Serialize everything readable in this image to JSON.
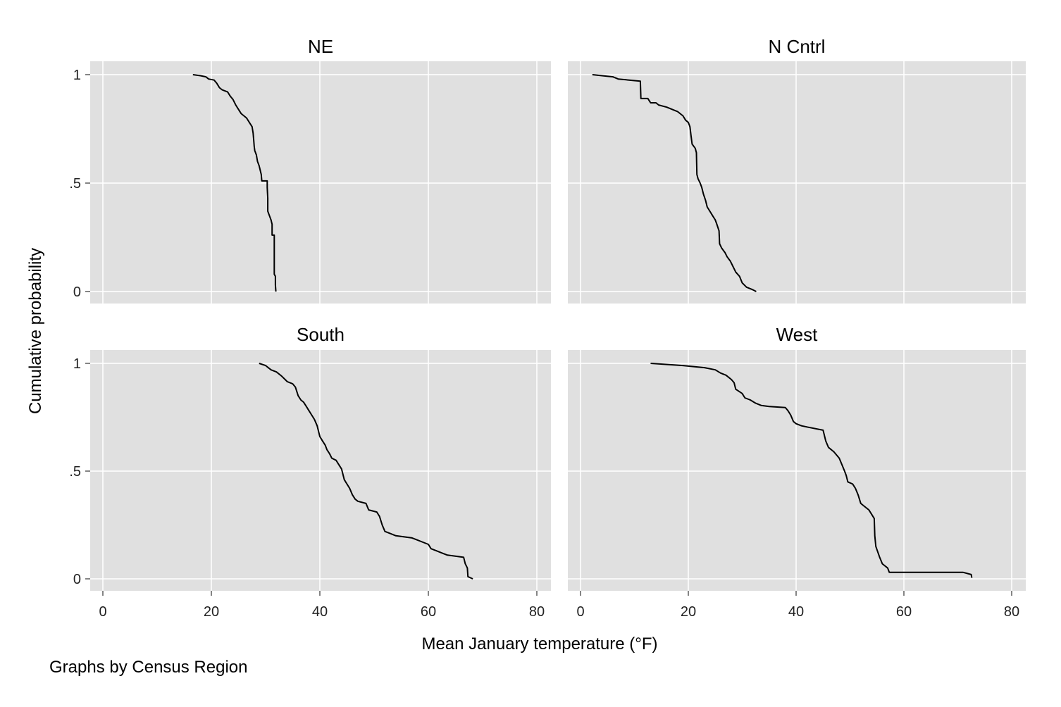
{
  "figure": {
    "xlabel": "Mean January temperature (°F)",
    "ylabel": "Cumulative probability",
    "note": "Graphs by Census Region",
    "background_color": "#ffffff",
    "plot_bg_color": "#e0e0e0",
    "grid_color": "#ffffff",
    "line_color": "#000000"
  },
  "chart_data": [
    {
      "type": "line",
      "title": "NE",
      "xlim": [
        0,
        80
      ],
      "ylim": [
        0,
        1
      ],
      "xticks": [
        "0",
        "20",
        "40",
        "60",
        "80"
      ],
      "yticks": [
        "0",
        ".5",
        "1"
      ],
      "series": [
        {
          "points": [
            [
              16.6,
              1.0
            ],
            [
              18.0,
              0.995
            ],
            [
              19.0,
              0.99
            ],
            [
              19.5,
              0.98
            ],
            [
              20.5,
              0.975
            ],
            [
              21.0,
              0.96
            ],
            [
              21.5,
              0.94
            ],
            [
              22.0,
              0.93
            ],
            [
              23.0,
              0.92
            ],
            [
              23.5,
              0.9
            ],
            [
              24.0,
              0.885
            ],
            [
              24.5,
              0.86
            ],
            [
              25.0,
              0.84
            ],
            [
              25.5,
              0.82
            ],
            [
              26.0,
              0.81
            ],
            [
              26.5,
              0.8
            ],
            [
              27.0,
              0.78
            ],
            [
              27.5,
              0.76
            ],
            [
              27.7,
              0.73
            ],
            [
              27.8,
              0.7
            ],
            [
              27.9,
              0.67
            ],
            [
              28.0,
              0.65
            ],
            [
              28.3,
              0.63
            ],
            [
              28.5,
              0.6
            ],
            [
              28.8,
              0.58
            ],
            [
              29.0,
              0.56
            ],
            [
              29.2,
              0.54
            ],
            [
              29.3,
              0.51
            ],
            [
              30.3,
              0.51
            ],
            [
              30.3,
              0.48
            ],
            [
              30.4,
              0.43
            ],
            [
              30.4,
              0.37
            ],
            [
              30.7,
              0.35
            ],
            [
              31.0,
              0.33
            ],
            [
              31.2,
              0.31
            ],
            [
              31.2,
              0.26
            ],
            [
              31.6,
              0.26
            ],
            [
              31.6,
              0.08
            ],
            [
              31.8,
              0.07
            ],
            [
              31.8,
              0.03
            ],
            [
              31.9,
              0.0
            ]
          ]
        }
      ]
    },
    {
      "type": "line",
      "title": "N Cntrl",
      "xlim": [
        0,
        80
      ],
      "ylim": [
        0,
        1
      ],
      "xticks": [
        "0",
        "20",
        "40",
        "60",
        "80"
      ],
      "yticks": [
        "0",
        ".5",
        "1"
      ],
      "series": [
        {
          "points": [
            [
              2.2,
              1.0
            ],
            [
              4.0,
              0.995
            ],
            [
              6.0,
              0.99
            ],
            [
              7.0,
              0.98
            ],
            [
              9.0,
              0.975
            ],
            [
              11.1,
              0.97
            ],
            [
              11.2,
              0.89
            ],
            [
              12.5,
              0.89
            ],
            [
              13.0,
              0.87
            ],
            [
              14.0,
              0.87
            ],
            [
              14.5,
              0.86
            ],
            [
              16.0,
              0.85
            ],
            [
              17.0,
              0.84
            ],
            [
              18.0,
              0.83
            ],
            [
              19.0,
              0.81
            ],
            [
              19.5,
              0.79
            ],
            [
              20.0,
              0.78
            ],
            [
              20.3,
              0.76
            ],
            [
              20.5,
              0.72
            ],
            [
              20.7,
              0.68
            ],
            [
              21.3,
              0.66
            ],
            [
              21.5,
              0.64
            ],
            [
              21.6,
              0.54
            ],
            [
              21.8,
              0.52
            ],
            [
              22.2,
              0.5
            ],
            [
              22.5,
              0.48
            ],
            [
              22.8,
              0.45
            ],
            [
              23.2,
              0.42
            ],
            [
              23.5,
              0.39
            ],
            [
              24.0,
              0.37
            ],
            [
              24.5,
              0.35
            ],
            [
              25.0,
              0.33
            ],
            [
              25.3,
              0.31
            ],
            [
              25.7,
              0.28
            ],
            [
              25.8,
              0.22
            ],
            [
              26.2,
              0.2
            ],
            [
              26.8,
              0.18
            ],
            [
              27.2,
              0.16
            ],
            [
              27.8,
              0.14
            ],
            [
              28.2,
              0.12
            ],
            [
              28.8,
              0.09
            ],
            [
              29.5,
              0.07
            ],
            [
              30.0,
              0.04
            ],
            [
              30.8,
              0.02
            ],
            [
              31.8,
              0.01
            ],
            [
              32.6,
              0.0
            ]
          ]
        }
      ]
    },
    {
      "type": "line",
      "title": "South",
      "xlim": [
        0,
        80
      ],
      "ylim": [
        0,
        1
      ],
      "xticks": [
        "0",
        "20",
        "40",
        "60",
        "80"
      ],
      "yticks": [
        "0",
        ".5",
        "1"
      ],
      "series": [
        {
          "points": [
            [
              28.8,
              1.0
            ],
            [
              30.0,
              0.99
            ],
            [
              31.0,
              0.97
            ],
            [
              32.0,
              0.96
            ],
            [
              33.0,
              0.94
            ],
            [
              34.0,
              0.915
            ],
            [
              35.0,
              0.905
            ],
            [
              35.5,
              0.89
            ],
            [
              36.0,
              0.85
            ],
            [
              36.5,
              0.83
            ],
            [
              37.0,
              0.82
            ],
            [
              37.5,
              0.8
            ],
            [
              38.0,
              0.78
            ],
            [
              38.5,
              0.76
            ],
            [
              39.0,
              0.74
            ],
            [
              39.5,
              0.71
            ],
            [
              40.0,
              0.66
            ],
            [
              40.5,
              0.64
            ],
            [
              41.0,
              0.62
            ],
            [
              41.3,
              0.6
            ],
            [
              41.8,
              0.58
            ],
            [
              42.2,
              0.56
            ],
            [
              43.0,
              0.55
            ],
            [
              43.5,
              0.53
            ],
            [
              44.0,
              0.51
            ],
            [
              44.5,
              0.46
            ],
            [
              45.0,
              0.44
            ],
            [
              45.5,
              0.42
            ],
            [
              46.0,
              0.39
            ],
            [
              46.5,
              0.37
            ],
            [
              47.0,
              0.36
            ],
            [
              48.5,
              0.35
            ],
            [
              49.0,
              0.32
            ],
            [
              50.5,
              0.31
            ],
            [
              51.0,
              0.29
            ],
            [
              51.5,
              0.25
            ],
            [
              52.0,
              0.22
            ],
            [
              53.0,
              0.21
            ],
            [
              54.0,
              0.2
            ],
            [
              57.0,
              0.19
            ],
            [
              58.0,
              0.18
            ],
            [
              59.0,
              0.17
            ],
            [
              60.0,
              0.16
            ],
            [
              60.5,
              0.14
            ],
            [
              61.5,
              0.13
            ],
            [
              62.5,
              0.12
            ],
            [
              63.5,
              0.11
            ],
            [
              66.5,
              0.1
            ],
            [
              66.8,
              0.07
            ],
            [
              67.2,
              0.05
            ],
            [
              67.3,
              0.01
            ],
            [
              68.2,
              0.0
            ]
          ]
        }
      ]
    },
    {
      "type": "line",
      "title": "West",
      "xlim": [
        0,
        80
      ],
      "ylim": [
        0,
        1
      ],
      "xticks": [
        "0",
        "20",
        "40",
        "60",
        "80"
      ],
      "yticks": [
        "0",
        ".5",
        "1"
      ],
      "series": [
        {
          "points": [
            [
              13.0,
              1.0
            ],
            [
              19.0,
              0.99
            ],
            [
              21.0,
              0.985
            ],
            [
              23.0,
              0.98
            ],
            [
              25.0,
              0.97
            ],
            [
              26.0,
              0.955
            ],
            [
              27.0,
              0.945
            ],
            [
              28.0,
              0.925
            ],
            [
              28.5,
              0.91
            ],
            [
              28.8,
              0.88
            ],
            [
              30.0,
              0.86
            ],
            [
              30.5,
              0.84
            ],
            [
              31.5,
              0.83
            ],
            [
              32.5,
              0.815
            ],
            [
              33.5,
              0.805
            ],
            [
              35.0,
              0.8
            ],
            [
              38.0,
              0.795
            ],
            [
              38.5,
              0.78
            ],
            [
              39.0,
              0.76
            ],
            [
              39.5,
              0.73
            ],
            [
              40.0,
              0.72
            ],
            [
              41.0,
              0.71
            ],
            [
              42.0,
              0.705
            ],
            [
              45.0,
              0.69
            ],
            [
              45.5,
              0.64
            ],
            [
              46.0,
              0.61
            ],
            [
              47.0,
              0.59
            ],
            [
              48.0,
              0.56
            ],
            [
              48.5,
              0.53
            ],
            [
              49.0,
              0.5
            ],
            [
              49.3,
              0.48
            ],
            [
              49.6,
              0.45
            ],
            [
              50.5,
              0.44
            ],
            [
              51.0,
              0.42
            ],
            [
              51.5,
              0.39
            ],
            [
              52.0,
              0.35
            ],
            [
              52.5,
              0.34
            ],
            [
              53.5,
              0.32
            ],
            [
              54.0,
              0.3
            ],
            [
              54.5,
              0.28
            ],
            [
              54.6,
              0.2
            ],
            [
              54.8,
              0.15
            ],
            [
              55.5,
              0.1
            ],
            [
              56.0,
              0.07
            ],
            [
              57.0,
              0.05
            ],
            [
              57.3,
              0.03
            ],
            [
              71.0,
              0.03
            ],
            [
              72.5,
              0.02
            ],
            [
              72.6,
              0.005
            ]
          ]
        }
      ]
    }
  ]
}
